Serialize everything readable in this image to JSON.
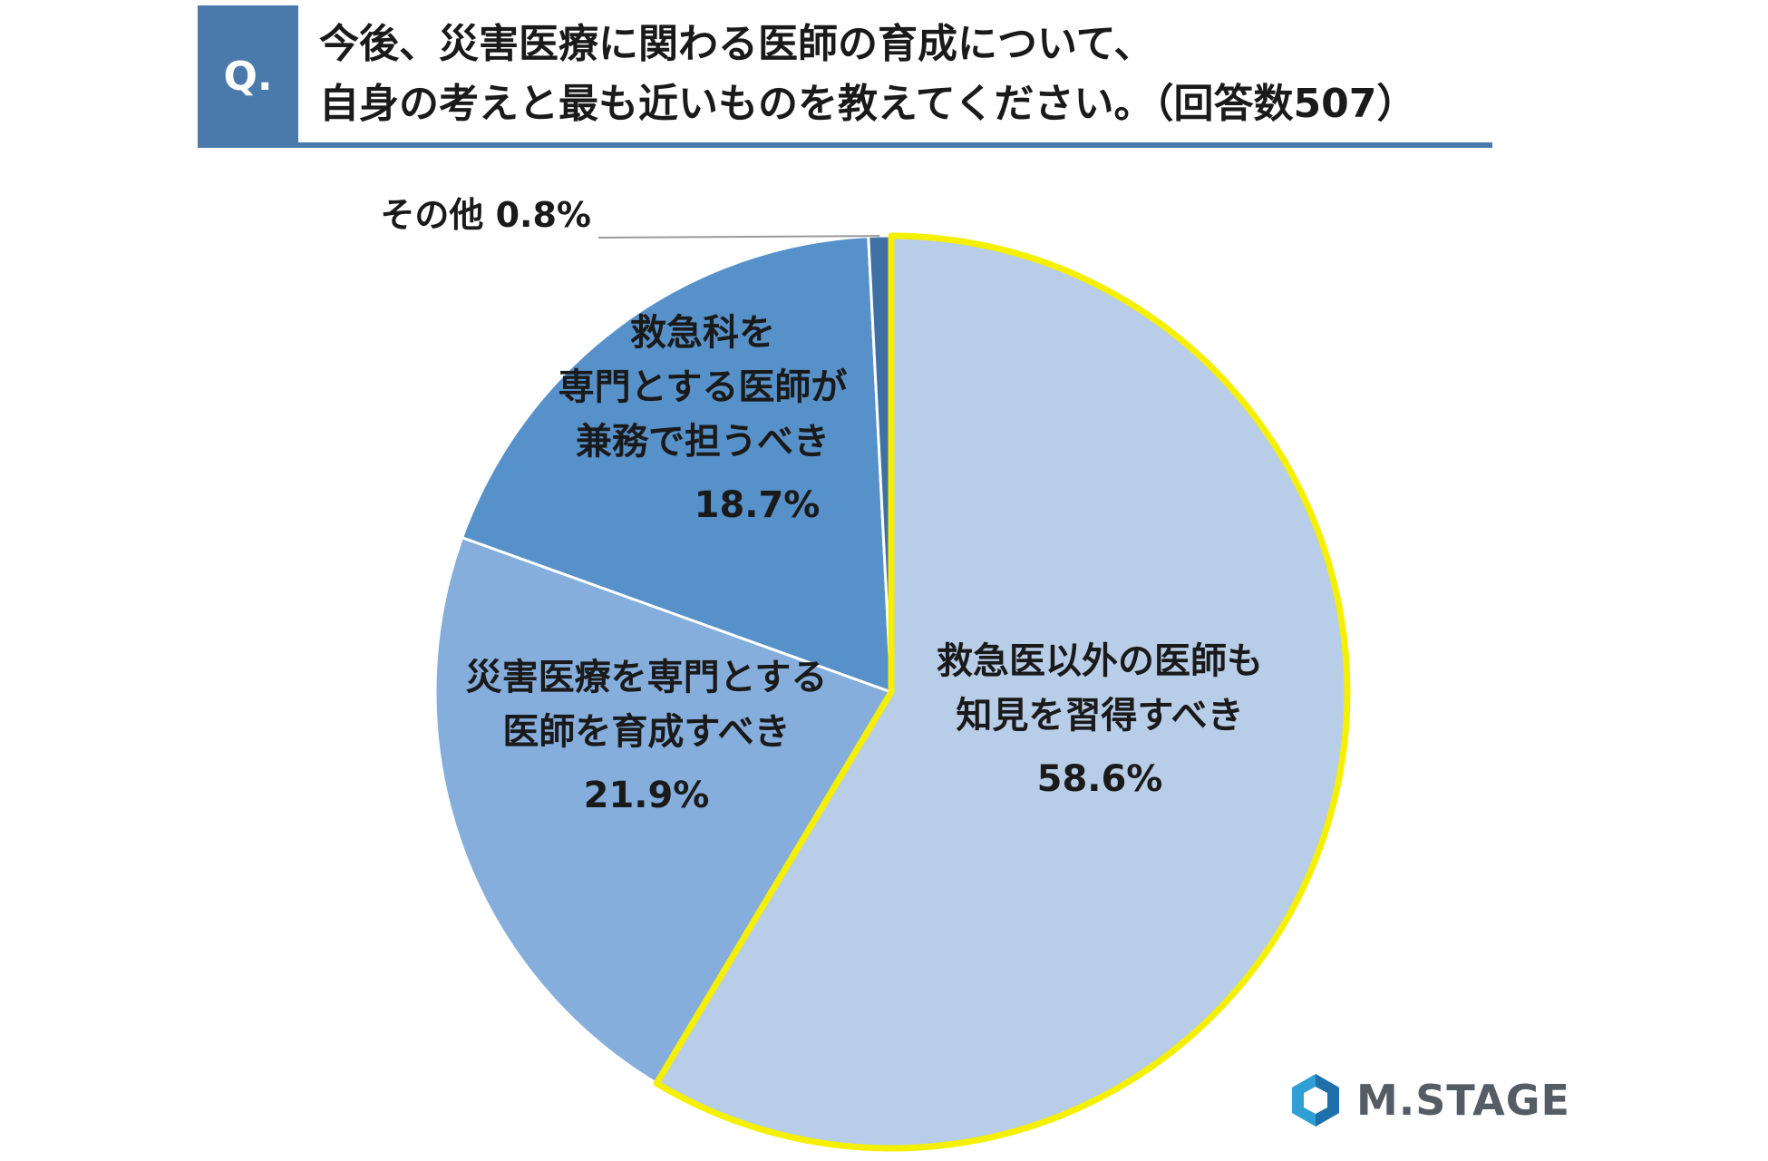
{
  "question": {
    "badge": "Q.",
    "line1": "今後、災害医療に関わる医師の育成について、",
    "line2": "自身の考えと最も近いものを教えてください。（回答数507）"
  },
  "chart_data": {
    "type": "pie",
    "title": "",
    "slices": [
      {
        "label_lines": [
          "救急医以外の医師も",
          "知見を習得すべき"
        ],
        "value_label": "58.6%",
        "value": 58.6,
        "color": "#b8cde8",
        "highlight": "#f5f000"
      },
      {
        "label_lines": [
          "災害医療を専門とする",
          "医師を育成すべき"
        ],
        "value_label": "21.9%",
        "value": 21.9,
        "color": "#85aedc"
      },
      {
        "label_lines": [
          "救急科を",
          "専門とする医師が",
          "兼務で担うべき"
        ],
        "value_label": "18.7%",
        "value": 18.7,
        "color": "#5791c9"
      },
      {
        "label_lines": [
          "その他"
        ],
        "value_label": "0.8%",
        "value": 0.8,
        "color": "#3f6fa3"
      }
    ]
  },
  "logo": {
    "text": "M.STAGE",
    "icon": "m-stage-hexagon-icon"
  }
}
